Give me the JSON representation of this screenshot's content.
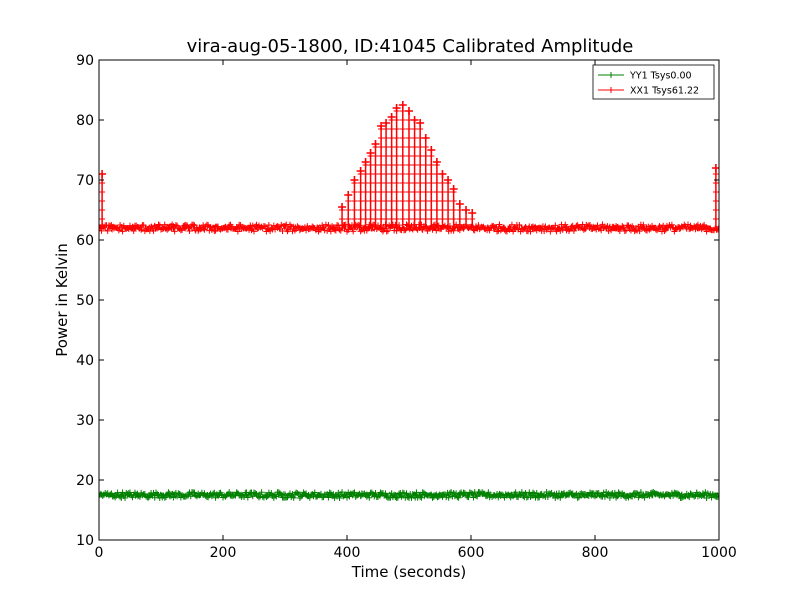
{
  "chart_data": {
    "type": "line",
    "title": "vira-aug-05-1800, ID:41045 Calibrated Amplitude",
    "xlabel": "Time (seconds)",
    "ylabel": "Power in Kelvin",
    "xlim": [
      0,
      1000
    ],
    "ylim": [
      10,
      90
    ],
    "xticks": [
      0,
      200,
      400,
      600,
      800,
      1000
    ],
    "yticks": [
      10,
      20,
      30,
      40,
      50,
      60,
      70,
      80,
      90
    ],
    "grid": false,
    "legend_position": "top-right",
    "marker": "+",
    "series": [
      {
        "name": "YY1 Tsys0.00",
        "color": "#008000",
        "baseline": 17.5,
        "noise": 0.5,
        "points": []
      },
      {
        "name": "XX1 Tsys61.22",
        "color": "#ff0000",
        "baseline": 62,
        "noise": 0.6,
        "points": [
          [
            5,
            71
          ],
          [
            392,
            65.5
          ],
          [
            402,
            67.5
          ],
          [
            412,
            70
          ],
          [
            422,
            71.5
          ],
          [
            430,
            73
          ],
          [
            438,
            74.5
          ],
          [
            446,
            76
          ],
          [
            455,
            79
          ],
          [
            463,
            79.5
          ],
          [
            472,
            80.5
          ],
          [
            480,
            82
          ],
          [
            490,
            82.5
          ],
          [
            500,
            81.5
          ],
          [
            509,
            80
          ],
          [
            518,
            79.5
          ],
          [
            527,
            77
          ],
          [
            536,
            75
          ],
          [
            545,
            73
          ],
          [
            554,
            71
          ],
          [
            563,
            70
          ],
          [
            572,
            68.5
          ],
          [
            582,
            66
          ],
          [
            592,
            65
          ],
          [
            602,
            64.5
          ],
          [
            995,
            72
          ]
        ]
      }
    ]
  }
}
